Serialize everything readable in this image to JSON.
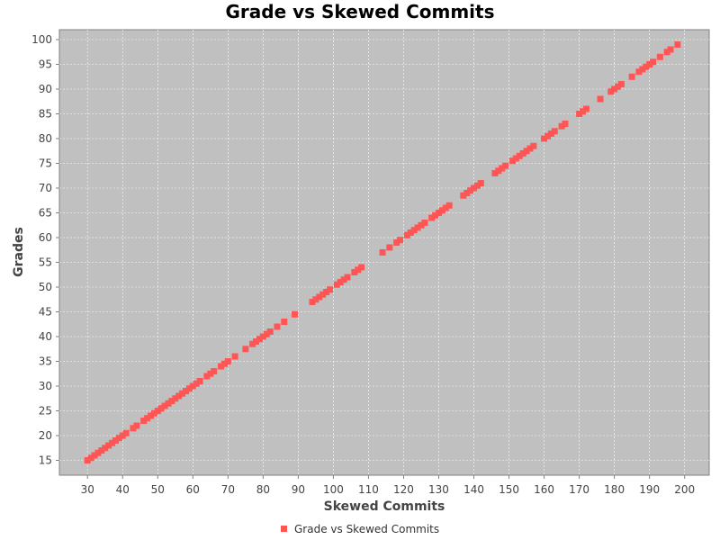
{
  "chart_data": {
    "type": "scatter",
    "title": "Grade vs Skewed Commits",
    "xlabel": "Skewed Commits",
    "ylabel": "Grades",
    "xlim": [
      22,
      207
    ],
    "ylim": [
      12,
      102
    ],
    "xticks": [
      30,
      40,
      50,
      60,
      70,
      80,
      90,
      100,
      110,
      120,
      130,
      140,
      150,
      160,
      170,
      180,
      190,
      200
    ],
    "yticks": [
      15,
      20,
      25,
      30,
      35,
      40,
      45,
      50,
      55,
      60,
      65,
      70,
      75,
      80,
      85,
      90,
      95,
      100
    ],
    "grid": true,
    "legend_position": "bottom-center",
    "colors": {
      "plot_background": "#c0c0c0",
      "grid": "#ffffff",
      "series": "#ff5555"
    },
    "series": [
      {
        "name": "Grade vs Skewed Commits",
        "x": [
          30,
          31,
          32,
          33,
          34,
          35,
          36,
          37,
          38,
          39,
          40,
          41,
          43,
          44,
          46,
          47,
          48,
          49,
          50,
          51,
          52,
          53,
          54,
          55,
          56,
          57,
          58,
          59,
          60,
          61,
          62,
          64,
          65,
          66,
          68,
          69,
          70,
          72,
          75,
          77,
          78,
          79,
          80,
          81,
          82,
          84,
          86,
          89,
          94,
          95,
          96,
          97,
          98,
          99,
          101,
          102,
          103,
          104,
          106,
          107,
          108,
          114,
          116,
          118,
          119,
          121,
          122,
          123,
          124,
          125,
          126,
          128,
          129,
          130,
          131,
          132,
          133,
          137,
          138,
          139,
          140,
          141,
          142,
          146,
          147,
          148,
          149,
          151,
          152,
          153,
          154,
          155,
          156,
          157,
          160,
          161,
          162,
          163,
          165,
          166,
          170,
          171,
          172,
          176,
          179,
          180,
          181,
          182,
          185,
          187,
          188,
          189,
          190,
          191,
          193,
          195,
          196,
          198
        ],
        "y": [
          15,
          15.5,
          16,
          16.5,
          17,
          17.5,
          18,
          18.5,
          19,
          19.5,
          20,
          20.5,
          21.5,
          22,
          23,
          23.5,
          24,
          24.5,
          25,
          25.5,
          26,
          26.5,
          27,
          27.5,
          28,
          28.5,
          29,
          29.5,
          30,
          30.5,
          31,
          32,
          32.5,
          33,
          34,
          34.5,
          35,
          36,
          37.5,
          38.5,
          39,
          39.5,
          40,
          40.5,
          41,
          42,
          43,
          44.5,
          47,
          47.5,
          48,
          48.5,
          49,
          49.5,
          50.5,
          51,
          51.5,
          52,
          53,
          53.5,
          54,
          57,
          58,
          59,
          59.5,
          60.5,
          61,
          61.5,
          62,
          62.5,
          63,
          64,
          64.5,
          65,
          65.5,
          66,
          66.5,
          68.5,
          69,
          69.5,
          70,
          70.5,
          71,
          73,
          73.5,
          74,
          74.5,
          75.5,
          76,
          76.5,
          77,
          77.5,
          78,
          78.5,
          80,
          80.5,
          81,
          81.5,
          82.5,
          83,
          85,
          85.5,
          86,
          88,
          89.5,
          90,
          90.5,
          91,
          92.5,
          93.5,
          94,
          94.5,
          95,
          95.5,
          96.5,
          97.5,
          98,
          99
        ]
      }
    ]
  }
}
